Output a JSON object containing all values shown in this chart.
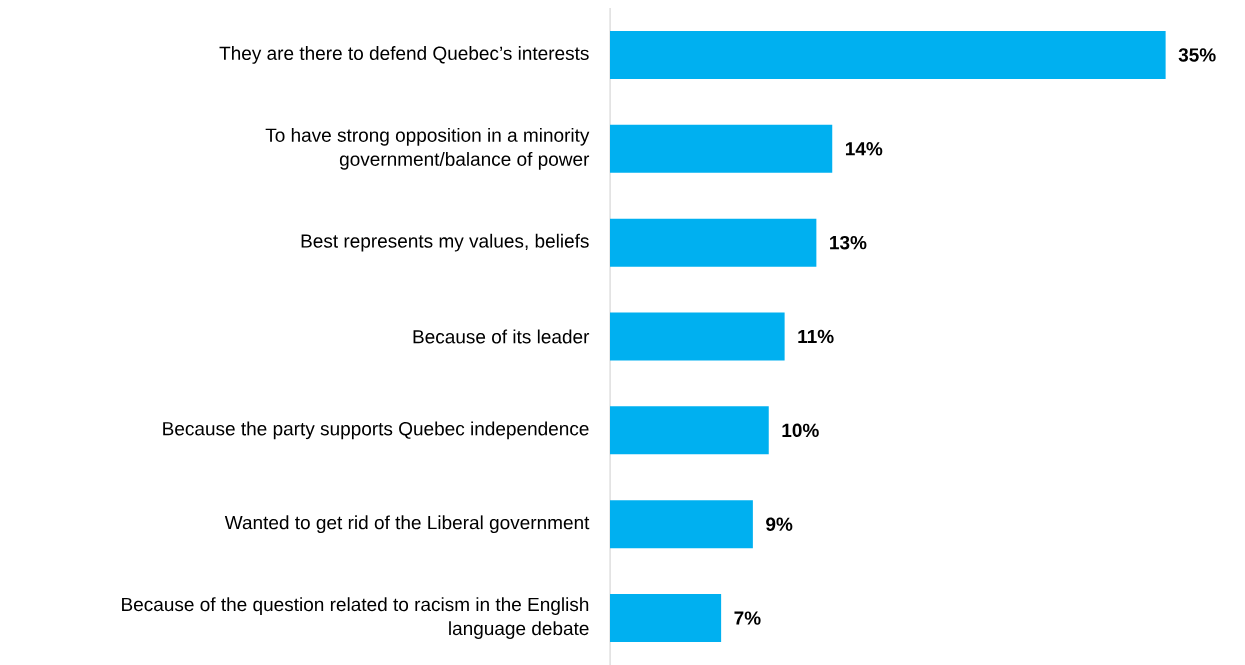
{
  "chart_data": {
    "type": "bar",
    "orientation": "horizontal",
    "color": "#00b0f0",
    "categories": [
      "They are there to defend Quebec’s interests",
      "To have strong opposition in a minority government/balance of power",
      "Best represents my values, beliefs",
      "Because of its leader",
      "Because the party supports Quebec independence",
      "Wanted to get rid of the Liberal government",
      "Because of the question related to racism in the English language debate"
    ],
    "values": [
      35,
      14,
      13,
      11,
      10,
      9,
      7
    ],
    "value_labels": [
      "35%",
      "14%",
      "13%",
      "11%",
      "10%",
      "9%",
      "7%"
    ],
    "grid": false
  }
}
